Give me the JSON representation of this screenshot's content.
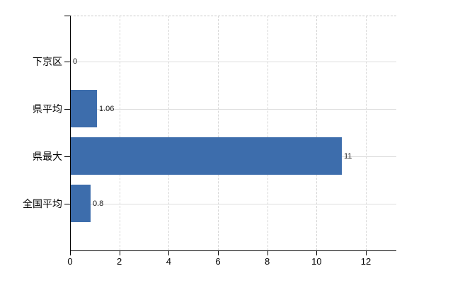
{
  "chart_data": {
    "type": "bar",
    "orientation": "horizontal",
    "title": "",
    "categories": [
      "下京区",
      "県平均",
      "県最大",
      "全国平均"
    ],
    "values": [
      0,
      1.06,
      11,
      0.8
    ],
    "data_labels": [
      "0",
      "1.06",
      "11",
      "0.8"
    ],
    "x_tick_labels": [
      "0",
      "2",
      "4",
      "6",
      "8",
      "10",
      "12"
    ],
    "x_tick_values": [
      0,
      2,
      4,
      6,
      8,
      10,
      12
    ],
    "xlim": [
      0,
      13.2
    ],
    "grid": true,
    "legend": false,
    "colors": {
      "bar": "#3d6dac",
      "v_grid": "#d6d6d6",
      "h_grid": "#dcdcdc",
      "axis": "#000000",
      "label": "#000000",
      "plot_top_border": "#c9c9c9",
      "background": "#ffffff"
    }
  }
}
